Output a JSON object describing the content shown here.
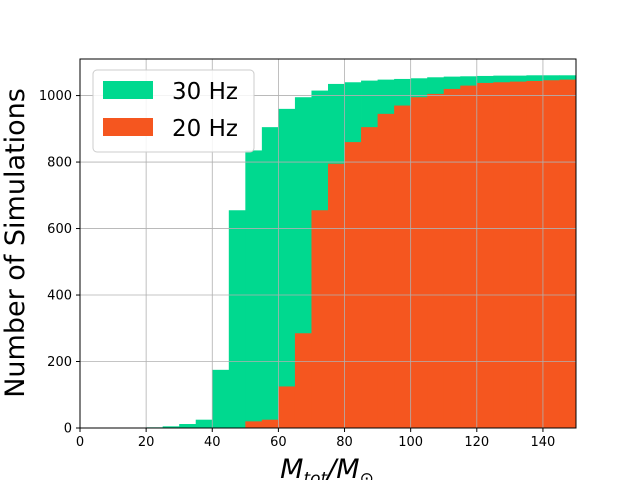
{
  "chart_data": {
    "type": "bar",
    "title": "",
    "xlabel": "M_tot/M_⊙",
    "ylabel": "Number of Simulations",
    "xlim": [
      0,
      150
    ],
    "ylim": [
      0,
      1110
    ],
    "grid": true,
    "legend_position": "top-left",
    "x_ticks": [
      0,
      20,
      40,
      60,
      80,
      100,
      120,
      140
    ],
    "y_ticks": [
      0,
      200,
      400,
      600,
      800,
      1000
    ],
    "bin_width": 5,
    "series": [
      {
        "name": "30 Hz",
        "color": "#00d98f",
        "bins": [
          {
            "x0": 20,
            "y": 2
          },
          {
            "x0": 25,
            "y": 5
          },
          {
            "x0": 30,
            "y": 12
          },
          {
            "x0": 35,
            "y": 25
          },
          {
            "x0": 40,
            "y": 175
          },
          {
            "x0": 45,
            "y": 655
          },
          {
            "x0": 50,
            "y": 835
          },
          {
            "x0": 55,
            "y": 905
          },
          {
            "x0": 60,
            "y": 960
          },
          {
            "x0": 65,
            "y": 995
          },
          {
            "x0": 70,
            "y": 1015
          },
          {
            "x0": 75,
            "y": 1035
          },
          {
            "x0": 80,
            "y": 1040
          },
          {
            "x0": 85,
            "y": 1045
          },
          {
            "x0": 90,
            "y": 1048
          },
          {
            "x0": 95,
            "y": 1050
          },
          {
            "x0": 100,
            "y": 1052
          },
          {
            "x0": 105,
            "y": 1055
          },
          {
            "x0": 110,
            "y": 1057
          },
          {
            "x0": 115,
            "y": 1058
          },
          {
            "x0": 120,
            "y": 1059
          },
          {
            "x0": 125,
            "y": 1060
          },
          {
            "x0": 130,
            "y": 1060
          },
          {
            "x0": 135,
            "y": 1061
          },
          {
            "x0": 140,
            "y": 1061
          },
          {
            "x0": 145,
            "y": 1061
          }
        ]
      },
      {
        "name": "20 Hz",
        "color": "#f5561f",
        "bins": [
          {
            "x0": 50,
            "y": 20
          },
          {
            "x0": 55,
            "y": 25
          },
          {
            "x0": 60,
            "y": 125
          },
          {
            "x0": 65,
            "y": 285
          },
          {
            "x0": 70,
            "y": 655
          },
          {
            "x0": 75,
            "y": 795
          },
          {
            "x0": 80,
            "y": 860
          },
          {
            "x0": 85,
            "y": 905
          },
          {
            "x0": 90,
            "y": 945
          },
          {
            "x0": 95,
            "y": 970
          },
          {
            "x0": 100,
            "y": 995
          },
          {
            "x0": 105,
            "y": 1005
          },
          {
            "x0": 110,
            "y": 1020
          },
          {
            "x0": 115,
            "y": 1030
          },
          {
            "x0": 120,
            "y": 1038
          },
          {
            "x0": 125,
            "y": 1040
          },
          {
            "x0": 130,
            "y": 1042
          },
          {
            "x0": 135,
            "y": 1044
          },
          {
            "x0": 140,
            "y": 1046
          },
          {
            "x0": 145,
            "y": 1048
          }
        ]
      }
    ]
  }
}
